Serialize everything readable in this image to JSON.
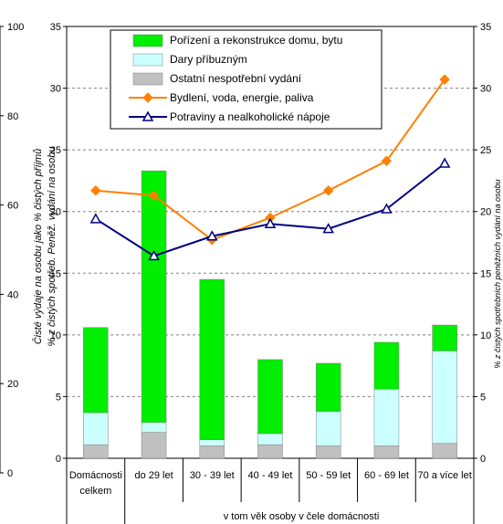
{
  "chart_data": {
    "type": "bar",
    "categories": [
      [
        "Domácnosti",
        "celkem"
      ],
      [
        "do 29 let"
      ],
      [
        "30 - 39 let"
      ],
      [
        "40 - 49 let"
      ],
      [
        "50 - 59 let"
      ],
      [
        "60 - 69 let"
      ],
      [
        "70 a více let"
      ]
    ],
    "xlabel": "v tom věk osoby v čele domácnosti",
    "ylabel_outer": "Čisté výdaje na osobu jako % čistých příjmů",
    "ylabel_inner": "% z čistých spotřeb. Peněž. vydání na osobu",
    "ylabel_right": "% z čistých spotřebních peněžních vydání na osobu",
    "ylim": [
      0,
      35
    ],
    "yticks": [
      0,
      5,
      10,
      15,
      20,
      25,
      30,
      35
    ],
    "outer_ylim": [
      0,
      100
    ],
    "outer_yticks": [
      0,
      20,
      40,
      60,
      80,
      100
    ],
    "series": [
      {
        "name": "Pořízení a rekonstrukce domu, bytu",
        "kind": "stacked-bar",
        "color": "#00ee00",
        "values": [
          6.9,
          20.4,
          13.0,
          6.0,
          3.9,
          3.8,
          2.1
        ]
      },
      {
        "name": "Dary příbuzným",
        "kind": "stacked-bar",
        "color": "#ccffff",
        "values": [
          2.6,
          0.8,
          0.5,
          0.9,
          2.8,
          4.6,
          7.5
        ]
      },
      {
        "name": "Ostatní nespotřební vydání",
        "kind": "stacked-bar",
        "color": "#c0c0c0",
        "values": [
          1.1,
          2.1,
          1.0,
          1.1,
          1.0,
          1.0,
          1.2
        ]
      },
      {
        "name": "Bydlení, voda, energie, paliva",
        "kind": "line",
        "marker": "diamond",
        "color": "#ff8000",
        "values": [
          21.7,
          21.3,
          17.7,
          19.5,
          21.7,
          24.1,
          30.7
        ]
      },
      {
        "name": "Potraviny a nealkoholické nápoje",
        "kind": "line",
        "marker": "triangle",
        "color": "#000080",
        "values": [
          19.4,
          16.4,
          18.0,
          19.0,
          18.6,
          20.2,
          23.9
        ]
      }
    ],
    "legend_position": "top-center",
    "grid": true
  }
}
